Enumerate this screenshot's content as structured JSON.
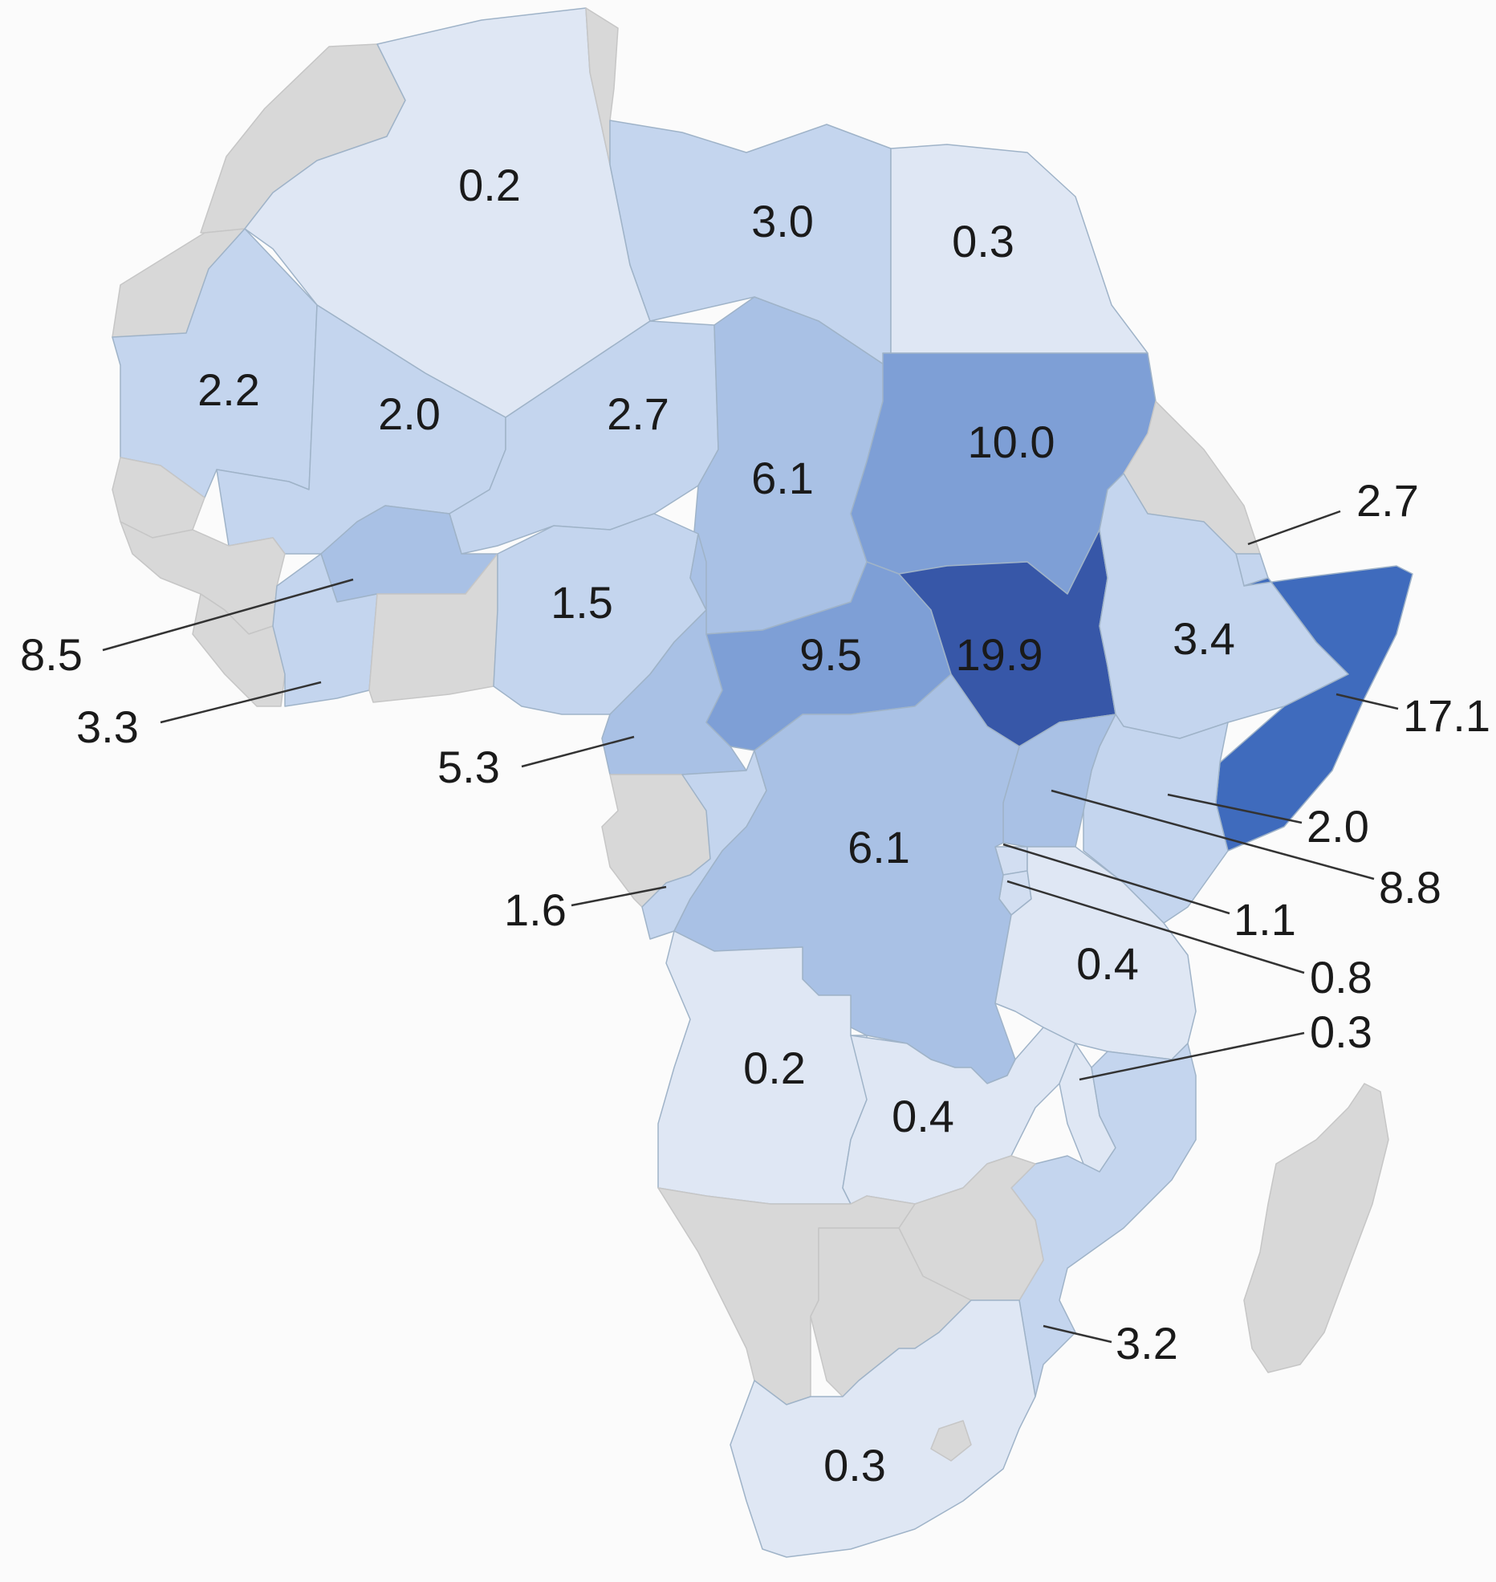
{
  "colors": {
    "background": "#fbfbfb",
    "no_data": "#d8d8d8",
    "scale": [
      "#dfe7f4",
      "#d2def1",
      "#c4d5ee",
      "#a9c1e5",
      "#7e9fd6",
      "#3f6bbd",
      "#3757a8"
    ]
  },
  "map": {
    "countries": [
      {
        "name": "morocco",
        "value": null,
        "label": ""
      },
      {
        "name": "western-sahara",
        "value": null,
        "label": ""
      },
      {
        "name": "algeria",
        "value": 0.2,
        "label": "0.2"
      },
      {
        "name": "tunisia",
        "value": null,
        "label": ""
      },
      {
        "name": "libya",
        "value": 3.0,
        "label": "3.0"
      },
      {
        "name": "egypt",
        "value": 0.3,
        "label": "0.3"
      },
      {
        "name": "mauritania",
        "value": 2.2,
        "label": "2.2"
      },
      {
        "name": "mali",
        "value": 2.0,
        "label": "2.0"
      },
      {
        "name": "niger",
        "value": 2.7,
        "label": "2.7"
      },
      {
        "name": "chad",
        "value": 6.1,
        "label": "6.1"
      },
      {
        "name": "sudan",
        "value": 10.0,
        "label": "10.0"
      },
      {
        "name": "senegal",
        "value": null,
        "label": ""
      },
      {
        "name": "guinea",
        "value": null,
        "label": ""
      },
      {
        "name": "sierra-leone-liberia",
        "value": null,
        "label": ""
      },
      {
        "name": "burkina-faso",
        "value": 8.5,
        "label": "8.5"
      },
      {
        "name": "cote-divoire",
        "value": 3.3,
        "label": "3.3"
      },
      {
        "name": "ghana-togo-benin",
        "value": null,
        "label": ""
      },
      {
        "name": "nigeria",
        "value": 1.5,
        "label": "1.5"
      },
      {
        "name": "cameroon",
        "value": 5.3,
        "label": "5.3"
      },
      {
        "name": "central-african-republic",
        "value": 9.5,
        "label": "9.5"
      },
      {
        "name": "south-sudan",
        "value": 19.9,
        "label": "19.9"
      },
      {
        "name": "eritrea",
        "value": null,
        "label": ""
      },
      {
        "name": "djibouti",
        "value": 2.7,
        "label": "2.7"
      },
      {
        "name": "ethiopia",
        "value": 3.4,
        "label": "3.4"
      },
      {
        "name": "somalia",
        "value": 17.1,
        "label": "17.1"
      },
      {
        "name": "kenya",
        "value": 2.0,
        "label": "2.0"
      },
      {
        "name": "uganda",
        "value": 8.8,
        "label": "8.8"
      },
      {
        "name": "rwanda",
        "value": 1.1,
        "label": "1.1"
      },
      {
        "name": "burundi",
        "value": 0.8,
        "label": "0.8"
      },
      {
        "name": "gabon-equatorial-guinea",
        "value": null,
        "label": ""
      },
      {
        "name": "republic-of-congo",
        "value": 1.6,
        "label": "1.6"
      },
      {
        "name": "dr-congo",
        "value": 6.1,
        "label": "6.1"
      },
      {
        "name": "tanzania",
        "value": 0.4,
        "label": "0.4"
      },
      {
        "name": "angola",
        "value": 0.2,
        "label": "0.2"
      },
      {
        "name": "zambia",
        "value": 0.4,
        "label": "0.4"
      },
      {
        "name": "malawi",
        "value": 0.3,
        "label": "0.3"
      },
      {
        "name": "mozambique",
        "value": 3.2,
        "label": "3.2"
      },
      {
        "name": "zimbabwe",
        "value": null,
        "label": ""
      },
      {
        "name": "namibia",
        "value": null,
        "label": ""
      },
      {
        "name": "botswana",
        "value": null,
        "label": ""
      },
      {
        "name": "south-africa",
        "value": 0.3,
        "label": "0.3"
      },
      {
        "name": "lesotho",
        "value": null,
        "label": ""
      },
      {
        "name": "madagascar",
        "value": null,
        "label": ""
      }
    ]
  }
}
